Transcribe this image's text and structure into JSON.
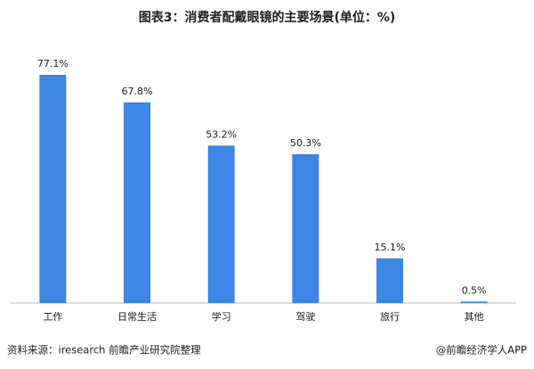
{
  "chart_data": {
    "type": "bar",
    "title": "图表3：消费者配戴眼镜的主要场景(单位：%)",
    "categories": [
      "工作",
      "日常生活",
      "学习",
      "驾驶",
      "旅行",
      "其他"
    ],
    "values": [
      77.1,
      67.8,
      53.2,
      50.3,
      15.1,
      0.5
    ],
    "value_labels": [
      "77.1%",
      "67.8%",
      "53.2%",
      "50.3%",
      "15.1%",
      "0.5%"
    ],
    "color": "#3d86e3",
    "source": "资料来源：iresearch 前瞻产业研究院整理",
    "credit": "@前瞻经济学人APP"
  }
}
